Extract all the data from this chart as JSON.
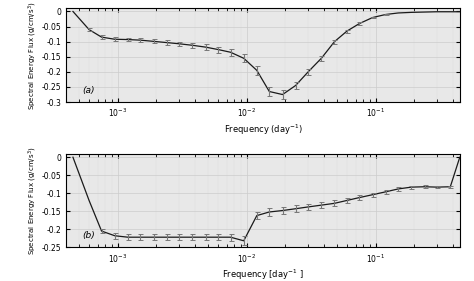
{
  "ylabel": "Spectral Energy Flux (g/cm/s³)",
  "xlabel_a": "Frequency (day⁻¹)",
  "xlabel_b": "Frequency [day⁻¹ ]",
  "background_color": "#e8e8e8",
  "panel_a": {
    "label": "(a)",
    "ylim": [
      -0.3,
      0.01
    ],
    "yticks": [
      0,
      -0.05,
      -0.1,
      -0.15,
      -0.2,
      -0.25,
      -0.3
    ],
    "xlim": [
      0.0004,
      0.45
    ],
    "x": [
      0.00045,
      0.0006,
      0.00075,
      0.00095,
      0.0012,
      0.0015,
      0.0019,
      0.0024,
      0.003,
      0.0038,
      0.0048,
      0.006,
      0.0075,
      0.0095,
      0.012,
      0.015,
      0.019,
      0.024,
      0.03,
      0.038,
      0.048,
      0.06,
      0.075,
      0.095,
      0.12,
      0.15,
      0.19,
      0.24,
      0.3,
      0.38,
      0.45
    ],
    "y": [
      0.0,
      -0.06,
      -0.085,
      -0.092,
      -0.093,
      -0.095,
      -0.099,
      -0.103,
      -0.107,
      -0.112,
      -0.118,
      -0.126,
      -0.135,
      -0.155,
      -0.195,
      -0.265,
      -0.275,
      -0.245,
      -0.2,
      -0.155,
      -0.1,
      -0.065,
      -0.04,
      -0.02,
      -0.01,
      -0.005,
      -0.003,
      -0.002,
      -0.001,
      -0.001,
      -0.001
    ],
    "yerr": [
      0.0,
      0.006,
      0.007,
      0.006,
      0.006,
      0.007,
      0.007,
      0.007,
      0.007,
      0.008,
      0.009,
      0.01,
      0.011,
      0.013,
      0.015,
      0.016,
      0.015,
      0.013,
      0.011,
      0.009,
      0.007,
      0.005,
      0.004,
      0.003,
      0.002,
      0.0,
      0.0,
      0.0,
      0.0,
      0.0,
      0.0
    ]
  },
  "panel_b": {
    "label": "(b)",
    "ylim": [
      -0.25,
      0.01
    ],
    "yticks": [
      0,
      -0.05,
      -0.1,
      -0.15,
      -0.2,
      -0.25
    ],
    "xlim": [
      0.0004,
      0.45
    ],
    "x": [
      0.00045,
      0.0006,
      0.00075,
      0.00095,
      0.0012,
      0.0015,
      0.0019,
      0.0024,
      0.003,
      0.0038,
      0.0048,
      0.006,
      0.0075,
      0.0095,
      0.012,
      0.015,
      0.019,
      0.024,
      0.03,
      0.038,
      0.048,
      0.06,
      0.075,
      0.095,
      0.12,
      0.15,
      0.19,
      0.24,
      0.3,
      0.38,
      0.45
    ],
    "y": [
      0.0,
      -0.12,
      -0.205,
      -0.218,
      -0.222,
      -0.222,
      -0.222,
      -0.222,
      -0.222,
      -0.222,
      -0.222,
      -0.222,
      -0.222,
      -0.232,
      -0.162,
      -0.152,
      -0.148,
      -0.143,
      -0.138,
      -0.133,
      -0.128,
      -0.12,
      -0.112,
      -0.104,
      -0.096,
      -0.088,
      -0.083,
      -0.082,
      -0.083,
      -0.082,
      0.0
    ],
    "yerr": [
      0.0,
      0.0,
      0.006,
      0.008,
      0.008,
      0.008,
      0.008,
      0.009,
      0.009,
      0.009,
      0.009,
      0.009,
      0.01,
      0.012,
      0.01,
      0.01,
      0.009,
      0.009,
      0.009,
      0.008,
      0.008,
      0.007,
      0.007,
      0.006,
      0.006,
      0.005,
      0.004,
      0.004,
      0.003,
      0.003,
      0.0
    ]
  }
}
